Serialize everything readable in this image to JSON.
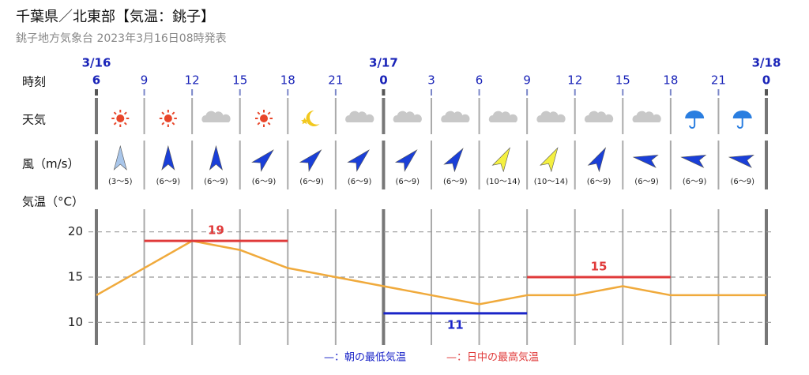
{
  "header": {
    "title": "千葉県／北東部【気温：銚子】",
    "subtitle": "銚子地方気象台 2023年3月16日08時発表"
  },
  "row_labels": {
    "time": "時刻",
    "weather": "天気",
    "wind": "風（m/s）",
    "temperature": "気温（°C）"
  },
  "time_axis": {
    "dates": [
      "3/16",
      null,
      null,
      null,
      null,
      null,
      "3/17",
      null,
      null,
      null,
      null,
      null,
      null,
      null,
      "3/18"
    ],
    "hours": [
      "6",
      "9",
      "12",
      "15",
      "18",
      "21",
      "0",
      "3",
      "6",
      "9",
      "12",
      "15",
      "18",
      "21",
      "0"
    ],
    "color": "#1a24b8"
  },
  "weather": {
    "icons": [
      "sunny",
      "sunny",
      "cloudy",
      "sunny",
      "clear-night",
      "cloudy",
      "cloudy",
      "cloudy",
      "cloudy",
      "cloudy",
      "cloudy",
      "cloudy",
      "rain",
      "rain"
    ]
  },
  "wind": {
    "ranges": [
      "(3〜5)",
      "(6〜9)",
      "(6〜9)",
      "(6〜9)",
      "(6〜9)",
      "(6〜9)",
      "(6〜9)",
      "(6〜9)",
      "(10〜14)",
      "(10〜14)",
      "(6〜9)",
      "(6〜9)",
      "(6〜9)",
      "(6〜9)"
    ],
    "angles": [
      0,
      0,
      0,
      45,
      45,
      45,
      45,
      35,
      30,
      30,
      30,
      280,
      280,
      280
    ],
    "colors": [
      "#a9c6ea",
      "#1a3fd8",
      "#1a3fd8",
      "#1a3fd8",
      "#1a3fd8",
      "#1a3fd8",
      "#1a3fd8",
      "#1a3fd8",
      "#f4f040",
      "#f4f040",
      "#1a3fd8",
      "#1a3fd8",
      "#1a3fd8",
      "#1a3fd8"
    ]
  },
  "chart_data": {
    "type": "line",
    "color": "#f0aa3c",
    "values": [
      13,
      16,
      19,
      18,
      16,
      15,
      14,
      13,
      12,
      13,
      13,
      14,
      13,
      13,
      13
    ],
    "ylim": [
      7.5,
      22.5
    ],
    "yticks": [
      10,
      15,
      20
    ],
    "grid": true,
    "extremes": [
      {
        "name": "—：朝の最低気温",
        "color": "#1a24c8",
        "bars": [
          {
            "value": 11,
            "start": 6,
            "end": 9
          }
        ]
      },
      {
        "name": "—：日中の最高気温",
        "color": "#e03a3a",
        "bars": [
          {
            "value": 19,
            "start": 1,
            "end": 4
          },
          {
            "value": 15,
            "start": 9,
            "end": 12
          }
        ]
      }
    ]
  }
}
